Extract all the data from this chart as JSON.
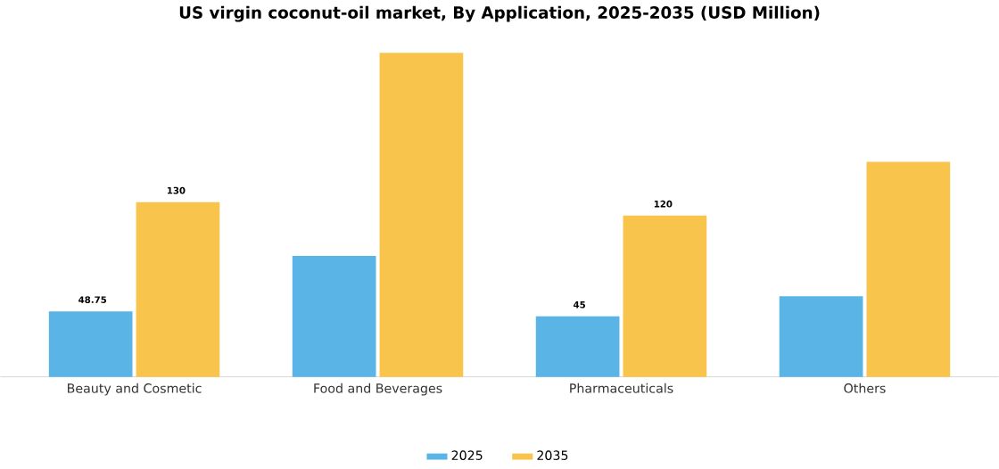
{
  "chart_data": {
    "type": "bar",
    "title": "US virgin coconut-oil market, By Application, 2025-2035 (USD Million)",
    "categories": [
      "Beauty and Cosmetic",
      "Food and Beverages",
      "Pharmaceuticals",
      "Others"
    ],
    "series": [
      {
        "name": "2025",
        "color": "#5ab4e6",
        "values": [
          48.75,
          90,
          45,
          60
        ],
        "value_labels": [
          "48.75",
          null,
          "45",
          null
        ]
      },
      {
        "name": "2035",
        "color": "#f8c44c",
        "values": [
          130,
          241,
          120,
          160
        ],
        "value_labels": [
          "130",
          null,
          "120",
          null
        ]
      }
    ],
    "legend": "bottom",
    "grid": false
  }
}
